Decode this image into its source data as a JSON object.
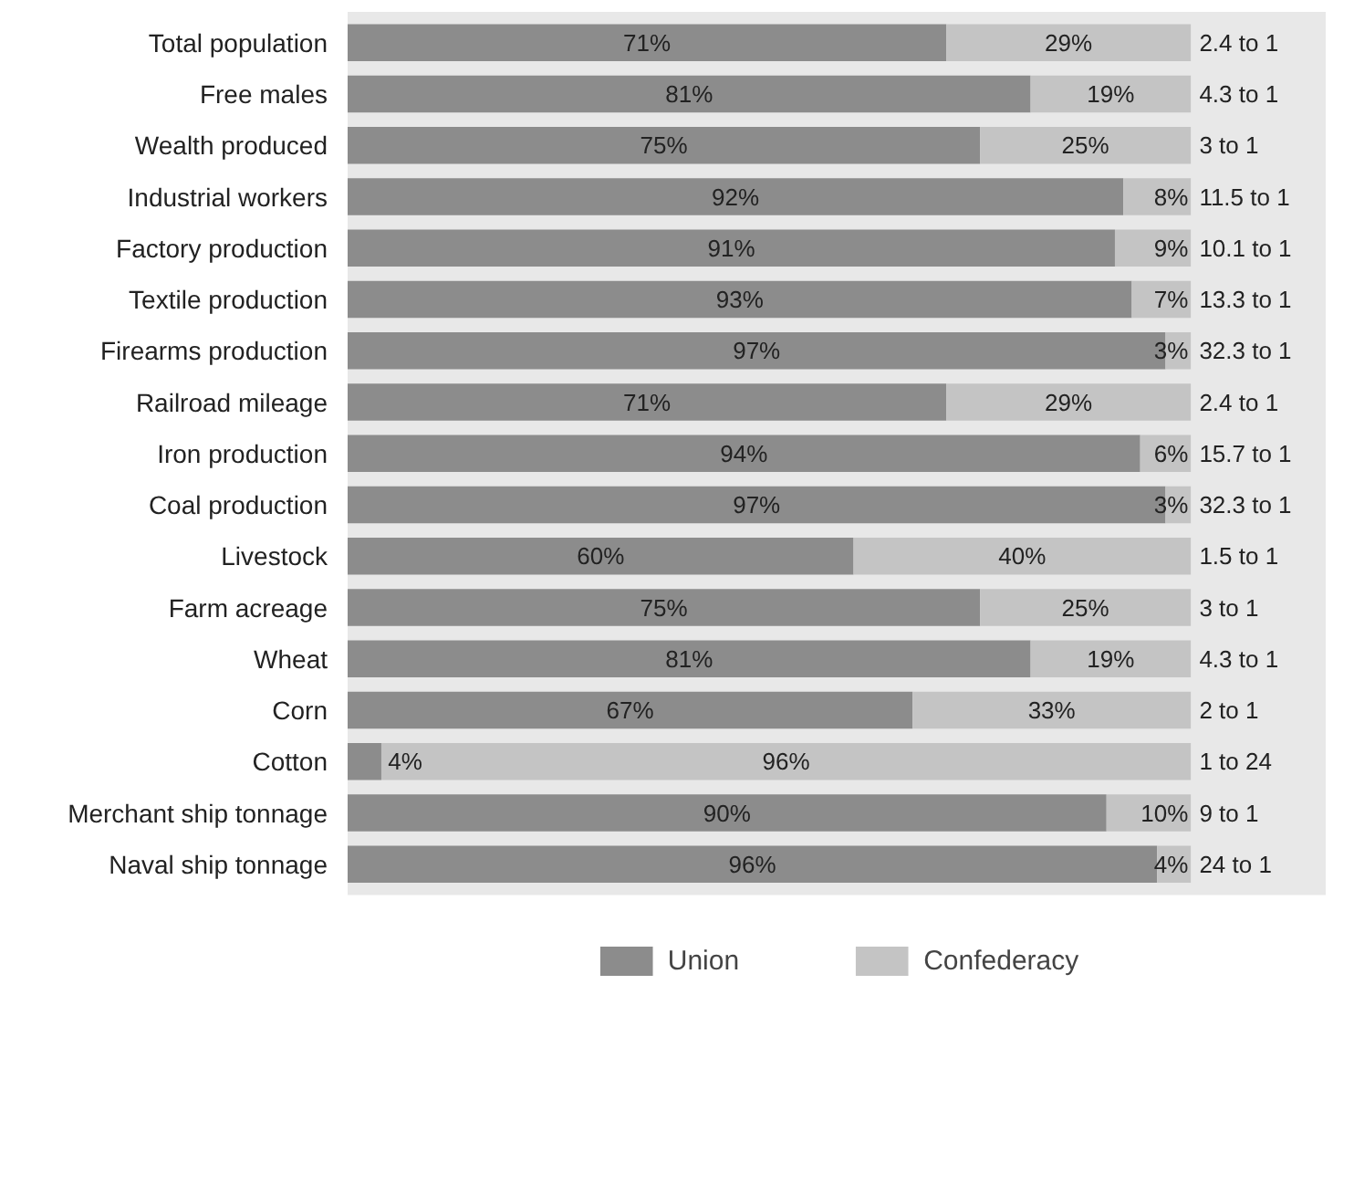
{
  "chart_data": {
    "type": "bar",
    "orientation": "horizontal",
    "stacked": true,
    "categories": [
      "Total population",
      "Free males",
      "Wealth produced",
      "Industrial workers",
      "Factory production",
      "Textile production",
      "Firearms production",
      "Railroad mileage",
      "Iron production",
      "Coal production",
      "Livestock",
      "Farm acreage",
      "Wheat",
      "Corn",
      "Cotton",
      "Merchant ship tonnage",
      "Naval ship tonnage"
    ],
    "series": [
      {
        "name": "Union",
        "color": "#8c8c8c",
        "values": [
          71,
          81,
          75,
          92,
          91,
          93,
          97,
          71,
          94,
          97,
          60,
          75,
          81,
          67,
          4,
          90,
          96
        ],
        "value_labels": [
          "71%",
          "81%",
          "75%",
          "92%",
          "91%",
          "93%",
          "97%",
          "71%",
          "94%",
          "97%",
          "60%",
          "75%",
          "81%",
          "67%",
          "4%",
          "90%",
          "96%"
        ]
      },
      {
        "name": "Confederacy",
        "color": "#c4c4c4",
        "values": [
          29,
          19,
          25,
          8,
          9,
          7,
          3,
          29,
          6,
          3,
          40,
          25,
          19,
          33,
          96,
          10,
          4
        ],
        "value_labels": [
          "29%",
          "19%",
          "25%",
          "8%",
          "9%",
          "7%",
          "3%",
          "29%",
          "6%",
          "3%",
          "40%",
          "25%",
          "19%",
          "33%",
          "96%",
          "10%",
          "4%"
        ]
      }
    ],
    "annotations": [
      "2.4 to 1",
      "4.3 to 1",
      "3 to 1",
      "11.5 to 1",
      "10.1 to 1",
      "13.3 to 1",
      "32.3 to 1",
      "2.4 to 1",
      "15.7 to 1",
      "32.3 to 1",
      "1.5 to 1",
      "3 to 1",
      "4.3 to 1",
      "2 to 1",
      "1 to 24",
      "9 to 1",
      "24 to 1"
    ],
    "legend": "bottom"
  }
}
